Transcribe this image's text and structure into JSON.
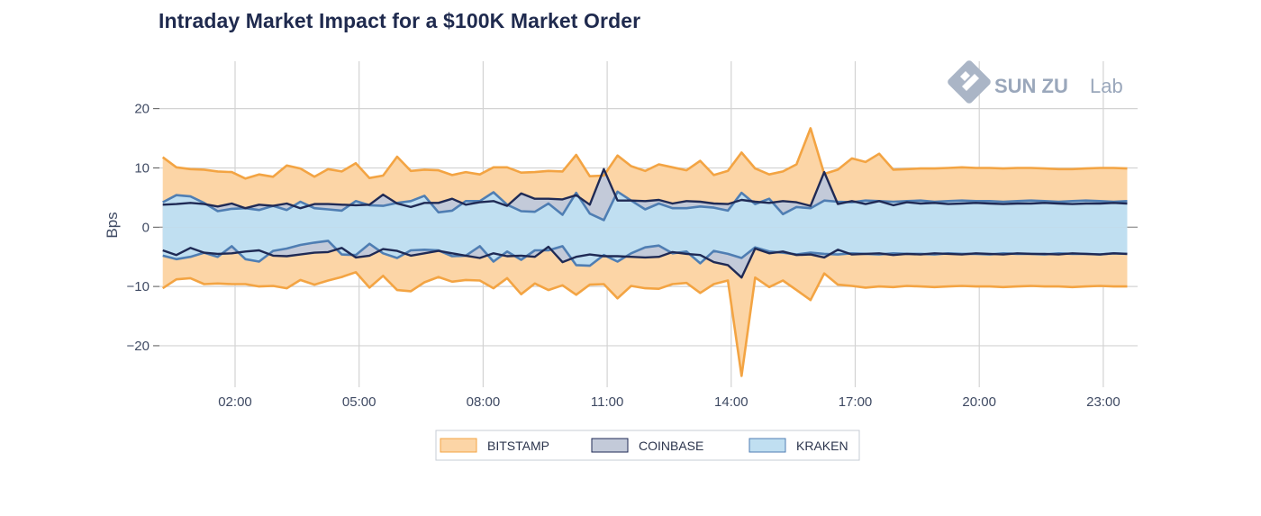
{
  "chart_data": {
    "type": "area",
    "title": "Intraday Market Impact for a $100K Market Order",
    "xlabel": "",
    "ylabel": "Bps",
    "ylim": [
      -27,
      28
    ],
    "xlim": [
      0.17,
      23.83
    ],
    "x_tick_values": [
      2,
      5,
      8,
      11,
      14,
      17,
      20,
      23
    ],
    "x_tick_labels": [
      "02:00",
      "05:00",
      "08:00",
      "11:00",
      "14:00",
      "17:00",
      "20:00",
      "23:00"
    ],
    "y_ticks": [
      20,
      10,
      0,
      -10,
      -20
    ],
    "y_tick_labels": [
      "20",
      "10",
      "0",
      "−10",
      "−20"
    ],
    "grid": true,
    "legend_position": "bottom-center",
    "watermark": {
      "brand": "SUN ZU",
      "suffix": "Lab"
    },
    "x": [
      0.25,
      0.58,
      0.92,
      1.25,
      1.58,
      1.92,
      2.25,
      2.58,
      2.92,
      3.25,
      3.58,
      3.92,
      4.25,
      4.58,
      4.92,
      5.25,
      5.58,
      5.92,
      6.25,
      6.58,
      6.92,
      7.25,
      7.58,
      7.92,
      8.25,
      8.58,
      8.92,
      9.25,
      9.58,
      9.92,
      10.25,
      10.58,
      10.92,
      11.25,
      11.58,
      11.92,
      12.25,
      12.58,
      12.92,
      13.25,
      13.58,
      13.92,
      14.25,
      14.58,
      14.92,
      15.25,
      15.58,
      15.92,
      16.25,
      16.58,
      16.92,
      17.25,
      17.58,
      17.92,
      18.25,
      18.58,
      18.92,
      19.25,
      19.58,
      19.92,
      20.25,
      20.58,
      20.92,
      21.25,
      21.58,
      21.92,
      22.25,
      22.58,
      22.92,
      23.25,
      23.58
    ],
    "series": [
      {
        "name": "BITSTAMP",
        "color": "#f3a443",
        "fill": "#fcd5a6",
        "upper": [
          11.8,
          10.1,
          9.8,
          9.7,
          9.4,
          9.3,
          8.2,
          8.9,
          8.5,
          10.4,
          9.9,
          8.5,
          9.8,
          9.4,
          10.8,
          8.3,
          8.7,
          11.9,
          9.5,
          9.7,
          9.6,
          8.8,
          9.3,
          8.9,
          10.1,
          10.1,
          9.2,
          9.3,
          9.5,
          9.4,
          12.2,
          8.6,
          8.7,
          12.1,
          10.3,
          9.5,
          10.6,
          10.1,
          9.6,
          11.2,
          8.8,
          9.5,
          12.6,
          9.9,
          8.9,
          9.4,
          10.6,
          16.7,
          9.0,
          9.7,
          11.6,
          11.0,
          12.4,
          9.7,
          9.8,
          9.9,
          9.9,
          10.0,
          10.1,
          10.0,
          10.0,
          9.9,
          10.0,
          10.0,
          9.9,
          9.8,
          9.8,
          9.9,
          10.0,
          10.0,
          9.9
        ],
        "lower": [
          -10.3,
          -8.8,
          -8.6,
          -9.6,
          -9.5,
          -9.6,
          -9.6,
          -10.0,
          -9.9,
          -10.3,
          -8.9,
          -9.7,
          -9.0,
          -8.4,
          -7.6,
          -10.2,
          -8.2,
          -10.6,
          -10.8,
          -9.3,
          -8.4,
          -9.2,
          -8.9,
          -9.0,
          -10.3,
          -8.6,
          -11.3,
          -9.5,
          -10.6,
          -9.8,
          -11.4,
          -9.7,
          -9.6,
          -12.0,
          -9.9,
          -10.3,
          -10.4,
          -9.6,
          -9.4,
          -11.1,
          -9.6,
          -9.0,
          -25.1,
          -8.5,
          -10.1,
          -9.0,
          -10.6,
          -12.3,
          -7.8,
          -9.7,
          -9.9,
          -10.2,
          -10.0,
          -10.1,
          -9.9,
          -10.0,
          -10.1,
          -10.0,
          -9.9,
          -10.0,
          -10.0,
          -10.1,
          -10.0,
          -9.9,
          -10.0,
          -10.0,
          -10.1,
          -10.0,
          -9.9,
          -10.0,
          -10.0
        ]
      },
      {
        "name": "COINBASE",
        "color": "#1f2a55",
        "fill": "#c3cad9",
        "upper": [
          3.8,
          3.9,
          4.1,
          3.9,
          3.5,
          4.0,
          3.2,
          3.8,
          3.6,
          4.0,
          3.2,
          3.9,
          3.9,
          3.8,
          3.7,
          3.8,
          5.5,
          4.0,
          3.4,
          4.1,
          4.1,
          4.8,
          3.8,
          4.2,
          4.4,
          3.6,
          5.7,
          4.8,
          4.8,
          4.7,
          5.4,
          3.8,
          9.8,
          4.5,
          4.5,
          4.4,
          4.6,
          4.0,
          4.4,
          4.3,
          4.0,
          3.9,
          4.6,
          4.3,
          4.1,
          4.4,
          4.2,
          3.6,
          9.3,
          3.9,
          4.4,
          3.9,
          4.4,
          3.7,
          4.2,
          4.0,
          4.1,
          3.9,
          4.0,
          4.1,
          4.0,
          3.9,
          4.0,
          4.0,
          4.1,
          4.0,
          3.9,
          4.0,
          4.0,
          4.1,
          4.0
        ],
        "lower": [
          -3.9,
          -4.7,
          -3.5,
          -4.3,
          -4.5,
          -4.4,
          -4.1,
          -3.9,
          -4.8,
          -4.9,
          -4.6,
          -4.3,
          -4.2,
          -3.5,
          -5.1,
          -4.8,
          -3.7,
          -4.0,
          -4.8,
          -4.4,
          -4.0,
          -4.4,
          -4.8,
          -5.2,
          -4.4,
          -4.9,
          -4.8,
          -5.0,
          -3.3,
          -5.9,
          -5.0,
          -4.6,
          -4.9,
          -4.9,
          -5.0,
          -5.1,
          -5.0,
          -4.2,
          -4.5,
          -4.7,
          -5.9,
          -6.4,
          -8.5,
          -3.6,
          -4.4,
          -4.1,
          -4.7,
          -4.6,
          -5.1,
          -3.8,
          -4.6,
          -4.5,
          -4.4,
          -4.7,
          -4.5,
          -4.6,
          -4.4,
          -4.5,
          -4.6,
          -4.4,
          -4.5,
          -4.6,
          -4.4,
          -4.5,
          -4.5,
          -4.6,
          -4.4,
          -4.5,
          -4.6,
          -4.4,
          -4.5
        ]
      },
      {
        "name": "KRAKEN",
        "color": "#4f7eb3",
        "fill": "#c0dff1",
        "upper": [
          4.2,
          5.4,
          5.2,
          4.1,
          2.7,
          3.1,
          3.2,
          2.9,
          3.6,
          2.9,
          4.3,
          3.2,
          3.0,
          2.8,
          4.4,
          3.7,
          3.6,
          4.1,
          4.4,
          5.3,
          2.5,
          2.8,
          4.4,
          4.4,
          5.9,
          3.8,
          2.7,
          2.6,
          4.0,
          2.1,
          5.8,
          2.3,
          1.2,
          6.0,
          4.5,
          3.0,
          4.0,
          3.2,
          3.2,
          3.5,
          3.3,
          2.8,
          5.8,
          3.9,
          4.8,
          2.2,
          3.4,
          3.2,
          4.5,
          4.3,
          4.2,
          4.5,
          4.4,
          4.3,
          4.4,
          4.5,
          4.3,
          4.4,
          4.5,
          4.4,
          4.4,
          4.3,
          4.4,
          4.5,
          4.4,
          4.3,
          4.4,
          4.5,
          4.4,
          4.3,
          4.4
        ],
        "lower": [
          -4.8,
          -5.4,
          -5.0,
          -4.3,
          -5.0,
          -3.2,
          -5.4,
          -5.8,
          -4.0,
          -3.6,
          -3.0,
          -2.6,
          -2.3,
          -4.6,
          -4.7,
          -2.8,
          -4.4,
          -5.2,
          -3.9,
          -3.8,
          -3.9,
          -4.9,
          -4.8,
          -3.2,
          -5.8,
          -4.1,
          -5.5,
          -3.9,
          -3.9,
          -3.2,
          -6.4,
          -6.5,
          -4.7,
          -5.8,
          -4.4,
          -3.4,
          -3.1,
          -4.4,
          -4.1,
          -6.1,
          -4.0,
          -4.5,
          -5.2,
          -3.4,
          -4.1,
          -4.3,
          -4.6,
          -4.3,
          -4.5,
          -4.6,
          -4.4,
          -4.5,
          -4.6,
          -4.4,
          -4.5,
          -4.5,
          -4.6,
          -4.4,
          -4.5,
          -4.5,
          -4.6,
          -4.4,
          -4.5,
          -4.5,
          -4.6,
          -4.4,
          -4.5,
          -4.5,
          -4.6,
          -4.4,
          -4.5
        ]
      }
    ]
  }
}
